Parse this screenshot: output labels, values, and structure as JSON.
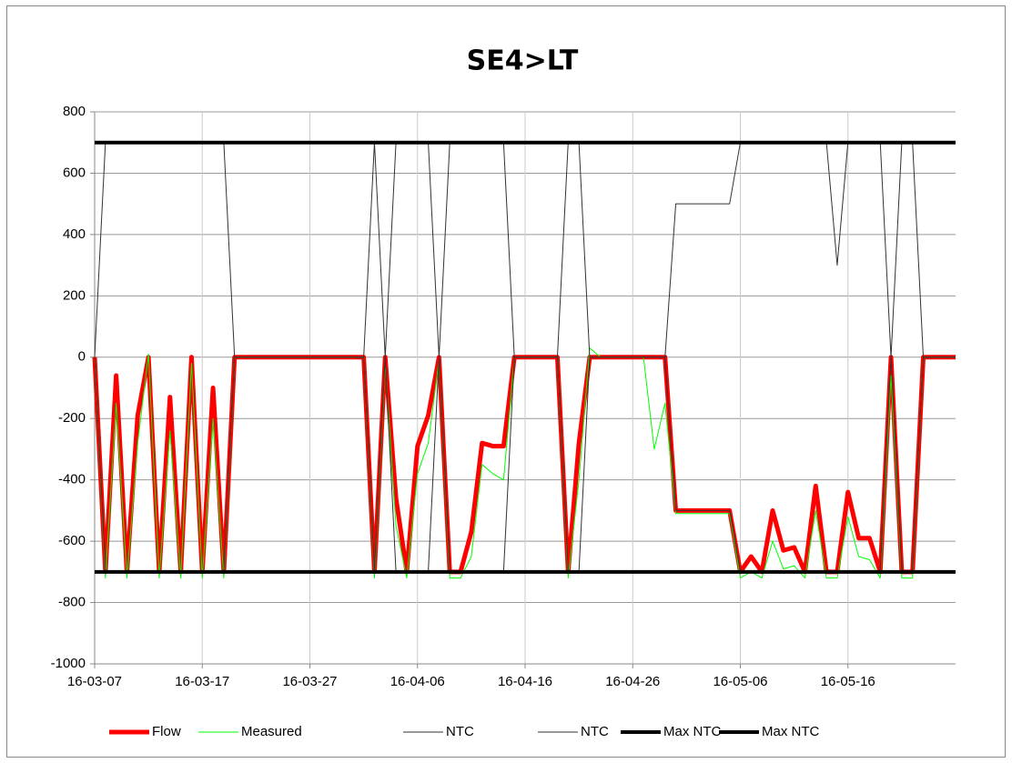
{
  "chart_data": {
    "type": "line",
    "title": "SE4>LT",
    "x": [
      "16-03-07",
      "16-03-08",
      "16-03-09",
      "16-03-10",
      "16-03-11",
      "16-03-12",
      "16-03-13",
      "16-03-14",
      "16-03-15",
      "16-03-16",
      "16-03-17",
      "16-03-18",
      "16-03-19",
      "16-03-20",
      "16-03-21",
      "16-03-22",
      "16-03-23",
      "16-03-24",
      "16-03-25",
      "16-03-26",
      "16-03-27",
      "16-03-28",
      "16-03-29",
      "16-03-30",
      "16-03-31",
      "16-04-01",
      "16-04-02",
      "16-04-03",
      "16-04-04",
      "16-04-05",
      "16-04-06",
      "16-04-07",
      "16-04-08",
      "16-04-09",
      "16-04-10",
      "16-04-11",
      "16-04-12",
      "16-04-13",
      "16-04-14",
      "16-04-15",
      "16-04-16",
      "16-04-17",
      "16-04-18",
      "16-04-19",
      "16-04-20",
      "16-04-21",
      "16-04-22",
      "16-04-23",
      "16-04-24",
      "16-04-25",
      "16-04-26",
      "16-04-27",
      "16-04-28",
      "16-04-29",
      "16-04-30",
      "16-05-01",
      "16-05-02",
      "16-05-03",
      "16-05-04",
      "16-05-05",
      "16-05-06",
      "16-05-07",
      "16-05-08",
      "16-05-09",
      "16-05-10",
      "16-05-11",
      "16-05-12",
      "16-05-13",
      "16-05-14",
      "16-05-15",
      "16-05-16",
      "16-05-17",
      "16-05-18",
      "16-05-19",
      "16-05-20",
      "16-05-21",
      "16-05-22",
      "16-05-23",
      "16-05-24",
      "16-05-25",
      "16-05-26"
    ],
    "series": [
      {
        "name": "Flow",
        "color": "#ff0000",
        "width": 5,
        "values": [
          0,
          -700,
          -60,
          -700,
          -190,
          0,
          -700,
          -130,
          -700,
          0,
          -700,
          -100,
          -700,
          0,
          0,
          0,
          0,
          0,
          0,
          0,
          0,
          0,
          0,
          0,
          0,
          0,
          -700,
          0,
          -460,
          -700,
          -290,
          -190,
          0,
          -700,
          -700,
          -570,
          -280,
          -290,
          -290,
          0,
          0,
          0,
          0,
          0,
          -700,
          -280,
          0,
          0,
          0,
          0,
          0,
          0,
          0,
          0,
          -500,
          -500,
          -500,
          -500,
          -500,
          -500,
          -700,
          -650,
          -700,
          -500,
          -630,
          -620,
          -700,
          -420,
          -700,
          -700,
          -440,
          -590,
          -590,
          -700,
          0,
          -700,
          -700,
          0,
          0,
          0,
          0
        ]
      },
      {
        "name": "Measured",
        "color": "#00ff00",
        "width": 1,
        "values": [
          0,
          -720,
          -150,
          -720,
          -280,
          10,
          -720,
          -240,
          -720,
          -20,
          -720,
          -200,
          -720,
          0,
          0,
          0,
          0,
          0,
          0,
          0,
          0,
          0,
          0,
          0,
          0,
          0,
          -720,
          -20,
          -550,
          -720,
          -380,
          -280,
          -10,
          -720,
          -720,
          -650,
          -350,
          -380,
          -400,
          0,
          0,
          0,
          0,
          0,
          -720,
          -400,
          30,
          0,
          0,
          0,
          0,
          0,
          -300,
          -150,
          -510,
          -510,
          -510,
          -510,
          -510,
          -510,
          -720,
          -700,
          -720,
          -600,
          -690,
          -680,
          -720,
          -500,
          -720,
          -720,
          -520,
          -650,
          -660,
          -720,
          -60,
          -720,
          -720,
          0,
          0,
          0,
          0
        ]
      },
      {
        "name": "NTC",
        "color": "#333333",
        "width": 1,
        "values": [
          0,
          700,
          700,
          700,
          700,
          700,
          700,
          700,
          700,
          700,
          700,
          700,
          700,
          0,
          0,
          0,
          0,
          0,
          0,
          0,
          0,
          0,
          0,
          0,
          0,
          0,
          700,
          0,
          700,
          700,
          700,
          700,
          0,
          700,
          700,
          700,
          700,
          700,
          700,
          0,
          0,
          0,
          0,
          0,
          700,
          700,
          0,
          0,
          0,
          0,
          0,
          0,
          0,
          0,
          500,
          500,
          500,
          500,
          500,
          500,
          700,
          700,
          700,
          700,
          700,
          700,
          700,
          700,
          700,
          300,
          700,
          700,
          700,
          700,
          0,
          700,
          700,
          0,
          0,
          0,
          0
        ]
      },
      {
        "name": "NTC",
        "color": "#333333",
        "width": 1,
        "values": [
          0,
          -700,
          -700,
          -700,
          -700,
          -700,
          -700,
          -700,
          -700,
          -700,
          -700,
          -700,
          -700,
          0,
          0,
          0,
          0,
          0,
          0,
          0,
          0,
          0,
          0,
          0,
          0,
          0,
          -700,
          0,
          -700,
          -700,
          -700,
          -700,
          0,
          -700,
          -700,
          -700,
          -700,
          -700,
          -700,
          0,
          0,
          0,
          0,
          0,
          -700,
          -700,
          0,
          0,
          0,
          0,
          0,
          0,
          0,
          0,
          -500,
          -500,
          -500,
          -500,
          -500,
          -500,
          -700,
          -700,
          -700,
          -700,
          -700,
          -700,
          -700,
          -700,
          -700,
          -700,
          -700,
          -700,
          -700,
          -700,
          0,
          -700,
          -700,
          0,
          0,
          0,
          0
        ]
      },
      {
        "name": "Max NTC",
        "color": "#000000",
        "width": 4,
        "values": [
          700,
          700,
          700,
          700,
          700,
          700,
          700,
          700,
          700,
          700,
          700,
          700,
          700,
          700,
          700,
          700,
          700,
          700,
          700,
          700,
          700,
          700,
          700,
          700,
          700,
          700,
          700,
          700,
          700,
          700,
          700,
          700,
          700,
          700,
          700,
          700,
          700,
          700,
          700,
          700,
          700,
          700,
          700,
          700,
          700,
          700,
          700,
          700,
          700,
          700,
          700,
          700,
          700,
          700,
          700,
          700,
          700,
          700,
          700,
          700,
          700,
          700,
          700,
          700,
          700,
          700,
          700,
          700,
          700,
          700,
          700,
          700,
          700,
          700,
          700,
          700,
          700,
          700,
          700,
          700,
          700
        ]
      },
      {
        "name": "Max NTC",
        "color": "#000000",
        "width": 4,
        "values": [
          -700,
          -700,
          -700,
          -700,
          -700,
          -700,
          -700,
          -700,
          -700,
          -700,
          -700,
          -700,
          -700,
          -700,
          -700,
          -700,
          -700,
          -700,
          -700,
          -700,
          -700,
          -700,
          -700,
          -700,
          -700,
          -700,
          -700,
          -700,
          -700,
          -700,
          -700,
          -700,
          -700,
          -700,
          -700,
          -700,
          -700,
          -700,
          -700,
          -700,
          -700,
          -700,
          -700,
          -700,
          -700,
          -700,
          -700,
          -700,
          -700,
          -700,
          -700,
          -700,
          -700,
          -700,
          -700,
          -700,
          -700,
          -700,
          -700,
          -700,
          -700,
          -700,
          -700,
          -700,
          -700,
          -700,
          -700,
          -700,
          -700,
          -700,
          -700,
          -700,
          -700,
          -700,
          -700,
          -700,
          -700,
          -700,
          -700,
          -700,
          -700
        ]
      }
    ],
    "xlim": [
      "16-03-07",
      "16-05-26"
    ],
    "xticks": [
      "16-03-07",
      "16-03-17",
      "16-03-27",
      "16-04-06",
      "16-04-16",
      "16-04-26",
      "16-05-06",
      "16-05-16"
    ],
    "ylim": [
      -1000,
      800
    ],
    "yticks": [
      -1000,
      -800,
      -600,
      -400,
      -200,
      0,
      200,
      400,
      600,
      800
    ],
    "grid": true,
    "legend": "bottom"
  }
}
